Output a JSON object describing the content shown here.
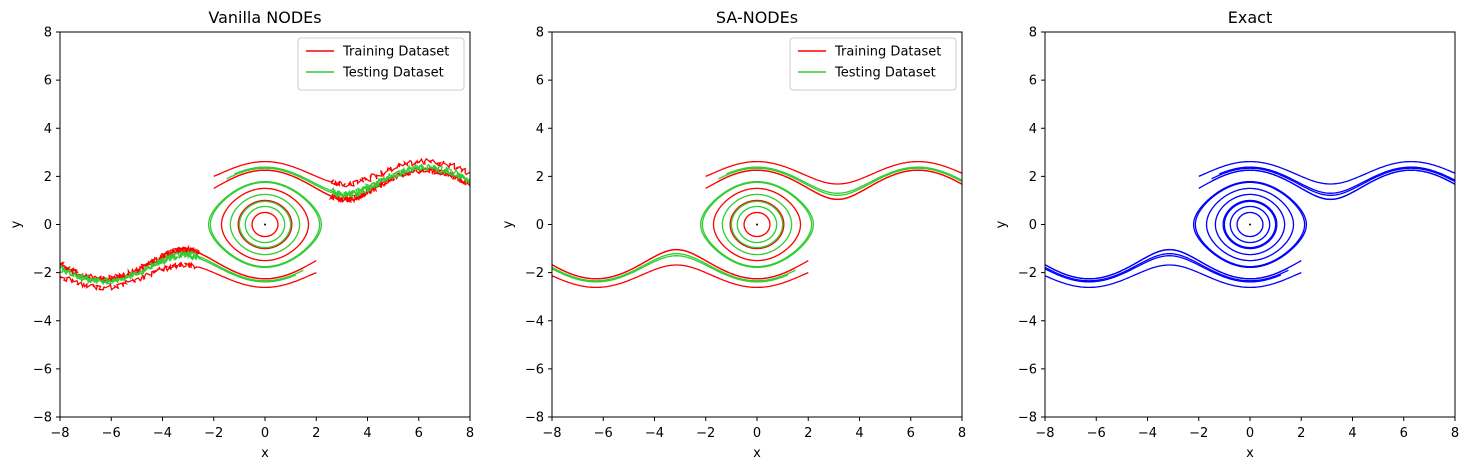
{
  "chart_data": [
    {
      "type": "line",
      "title": "Vanilla NODEs",
      "xlabel": "x",
      "ylabel": "y",
      "xlim": [
        -8,
        8
      ],
      "ylim": [
        -8,
        8
      ],
      "xticks": [
        -8,
        -6,
        -4,
        -2,
        0,
        2,
        4,
        6,
        8
      ],
      "yticks": [
        -8,
        -6,
        -4,
        -2,
        0,
        2,
        4,
        6,
        8
      ],
      "legend": "top-right",
      "noisy": true,
      "series": [
        {
          "name": "Training Dataset",
          "color": "#ff0000",
          "kind": "train"
        },
        {
          "name": "Testing Dataset",
          "color": "#33cc33",
          "kind": "test"
        }
      ]
    },
    {
      "type": "line",
      "title": "SA-NODEs",
      "xlabel": "x",
      "ylabel": "y",
      "xlim": [
        -8,
        8
      ],
      "ylim": [
        -8,
        8
      ],
      "xticks": [
        -8,
        -6,
        -4,
        -2,
        0,
        2,
        4,
        6,
        8
      ],
      "yticks": [
        -8,
        -6,
        -4,
        -2,
        0,
        2,
        4,
        6,
        8
      ],
      "legend": "top-right",
      "noisy": false,
      "series": [
        {
          "name": "Training Dataset",
          "color": "#ff0000",
          "kind": "train"
        },
        {
          "name": "Testing Dataset",
          "color": "#33cc33",
          "kind": "test"
        }
      ]
    },
    {
      "type": "line",
      "title": "Exact",
      "xlabel": "x",
      "ylabel": "y",
      "xlim": [
        -8,
        8
      ],
      "ylim": [
        -8,
        8
      ],
      "xticks": [
        -8,
        -6,
        -4,
        -2,
        0,
        2,
        4,
        6,
        8
      ],
      "yticks": [
        -8,
        -6,
        -4,
        -2,
        0,
        2,
        4,
        6,
        8
      ],
      "legend": "none",
      "noisy": false,
      "series": [
        {
          "name": "",
          "color": "#0000ff",
          "kind": "exact"
        }
      ]
    }
  ]
}
